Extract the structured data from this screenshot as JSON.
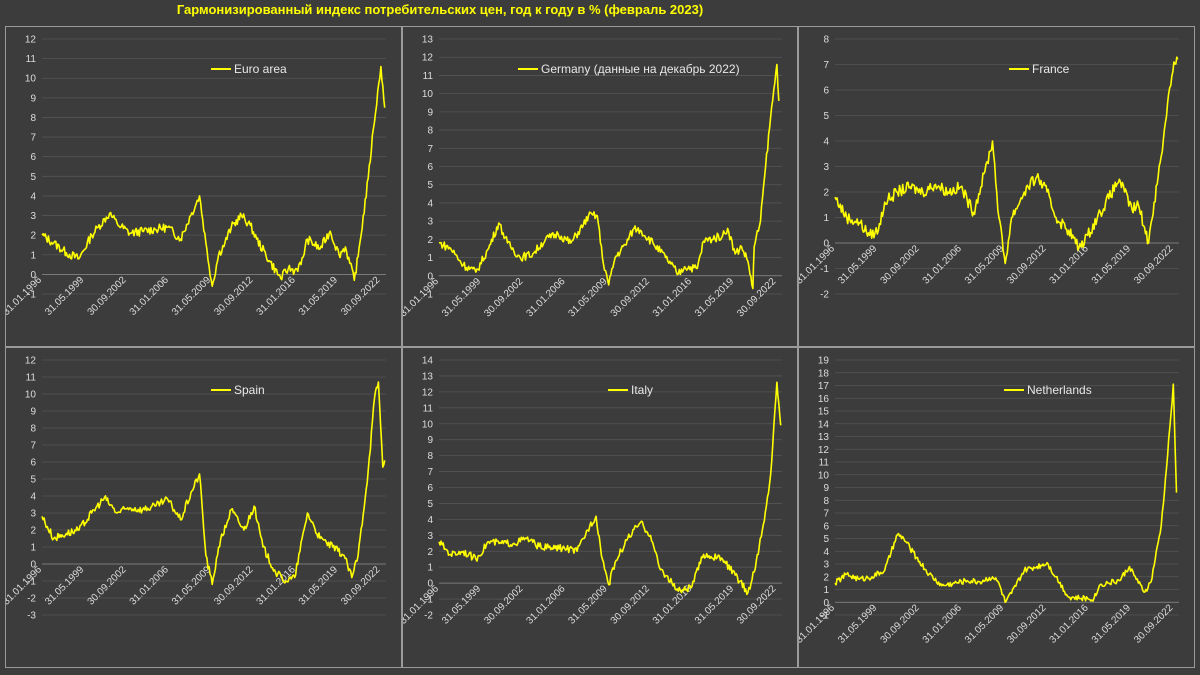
{
  "title": "Гармонизированный индекс потребительских цен, год к году в % (февраль 2023)",
  "colors": {
    "line": "#ffff00",
    "background": "#3c3c3c",
    "grid": "#5a5a5a",
    "axis_text": "#dcdcdc",
    "title": "#ffff00"
  },
  "chart_data": [
    {
      "type": "line",
      "name": "Euro area",
      "ylim": [
        -1,
        12
      ],
      "yticks": [
        "-1",
        "0",
        "1",
        "2",
        "3",
        "4",
        "5",
        "6",
        "7",
        "8",
        "9",
        "10",
        "11",
        "12"
      ],
      "xticks": [
        "31.01.1996",
        "31.05.1999",
        "30.09.2002",
        "31.01.2006",
        "31.05.2009",
        "30.09.2012",
        "31.01.2016",
        "31.05.2019",
        "30.09.2022"
      ],
      "legend": "top-center",
      "grid": true,
      "points": [
        [
          1996.08,
          2.0
        ],
        [
          1997.0,
          1.6
        ],
        [
          1998.0,
          1.1
        ],
        [
          1999.0,
          0.8
        ],
        [
          2000.0,
          2.0
        ],
        [
          2000.5,
          2.4
        ],
        [
          2001.4,
          3.1
        ],
        [
          2002.0,
          2.6
        ],
        [
          2003.0,
          2.1
        ],
        [
          2004.0,
          2.2
        ],
        [
          2005.0,
          2.3
        ],
        [
          2006.0,
          2.4
        ],
        [
          2007.0,
          1.8
        ],
        [
          2007.8,
          3.0
        ],
        [
          2008.5,
          4.0
        ],
        [
          2009.0,
          1.6
        ],
        [
          2009.5,
          -0.6
        ],
        [
          2010.0,
          1.0
        ],
        [
          2010.5,
          1.6
        ],
        [
          2011.0,
          2.4
        ],
        [
          2011.8,
          3.0
        ],
        [
          2012.5,
          2.5
        ],
        [
          2013.0,
          1.8
        ],
        [
          2014.0,
          0.7
        ],
        [
          2014.9,
          -0.2
        ],
        [
          2015.5,
          0.3
        ],
        [
          2016.0,
          0.2
        ],
        [
          2016.5,
          0.5
        ],
        [
          2017.0,
          1.8
        ],
        [
          2018.0,
          1.3
        ],
        [
          2018.8,
          2.2
        ],
        [
          2019.5,
          1.0
        ],
        [
          2020.0,
          1.4
        ],
        [
          2020.7,
          -0.3
        ],
        [
          2021.0,
          0.9
        ],
        [
          2021.8,
          4.9
        ],
        [
          2022.2,
          7.4
        ],
        [
          2022.8,
          10.6
        ],
        [
          2023.1,
          8.5
        ]
      ]
    },
    {
      "type": "line",
      "name": "Germany (данные на декабрь 2022)",
      "ylim": [
        -1,
        13
      ],
      "yticks": [
        "-1",
        "0",
        "1",
        "2",
        "3",
        "4",
        "5",
        "6",
        "7",
        "8",
        "9",
        "10",
        "11",
        "12",
        "13"
      ],
      "xticks": [
        "31.01.1996",
        "31.05.1999",
        "30.09.2002",
        "31.01.2006",
        "31.05.2009",
        "30.09.2012",
        "31.01.2016",
        "31.05.2019",
        "30.09.2022"
      ],
      "legend": "top-center",
      "grid": true,
      "points": [
        [
          1996.08,
          1.8
        ],
        [
          1997.0,
          1.5
        ],
        [
          1998.0,
          0.6
        ],
        [
          1999.0,
          0.2
        ],
        [
          2000.0,
          1.5
        ],
        [
          2000.8,
          2.9
        ],
        [
          2001.5,
          1.8
        ],
        [
          2002.5,
          1.0
        ],
        [
          2003.5,
          1.2
        ],
        [
          2004.5,
          2.0
        ],
        [
          2005.5,
          2.3
        ],
        [
          2006.5,
          1.8
        ],
        [
          2007.5,
          2.8
        ],
        [
          2007.9,
          3.3
        ],
        [
          2008.6,
          3.3
        ],
        [
          2009.0,
          1.0
        ],
        [
          2009.5,
          -0.5
        ],
        [
          2010.0,
          1.0
        ],
        [
          2010.8,
          1.7
        ],
        [
          2011.5,
          2.6
        ],
        [
          2012.0,
          2.5
        ],
        [
          2013.0,
          1.8
        ],
        [
          2014.0,
          1.0
        ],
        [
          2015.0,
          0.1
        ],
        [
          2015.5,
          0.5
        ],
        [
          2016.5,
          0.4
        ],
        [
          2017.0,
          1.9
        ],
        [
          2018.5,
          2.2
        ],
        [
          2018.9,
          2.6
        ],
        [
          2019.5,
          1.2
        ],
        [
          2020.0,
          1.6
        ],
        [
          2020.5,
          0.8
        ],
        [
          2020.9,
          -0.7
        ],
        [
          2021.0,
          1.6
        ],
        [
          2021.5,
          3.0
        ],
        [
          2021.9,
          6.0
        ],
        [
          2022.3,
          8.7
        ],
        [
          2022.8,
          11.6
        ],
        [
          2022.95,
          9.6
        ]
      ]
    },
    {
      "type": "line",
      "name": "France",
      "ylim": [
        -2,
        8
      ],
      "yticks": [
        "-2",
        "-1",
        "0",
        "1",
        "2",
        "3",
        "4",
        "5",
        "6",
        "7",
        "8"
      ],
      "xticks": [
        "31.01.1996",
        "31.05.1999",
        "30.09.2002",
        "31.01.2006",
        "31.05.2009",
        "30.09.2012",
        "31.01.2016",
        "31.05.2019",
        "30.09.2022"
      ],
      "legend": "top-right",
      "grid": true,
      "points": [
        [
          1996.08,
          1.8
        ],
        [
          1997.0,
          1.0
        ],
        [
          1998.0,
          0.8
        ],
        [
          1998.8,
          0.3
        ],
        [
          1999.5,
          0.5
        ],
        [
          2000.0,
          1.6
        ],
        [
          2001.0,
          2.0
        ],
        [
          2002.0,
          2.2
        ],
        [
          2003.0,
          2.0
        ],
        [
          2004.0,
          2.3
        ],
        [
          2005.0,
          2.0
        ],
        [
          2006.0,
          2.2
        ],
        [
          2007.0,
          1.2
        ],
        [
          2007.9,
          2.8
        ],
        [
          2008.5,
          4.0
        ],
        [
          2009.0,
          1.0
        ],
        [
          2009.5,
          -0.8
        ],
        [
          2010.0,
          1.0
        ],
        [
          2011.0,
          2.0
        ],
        [
          2012.0,
          2.6
        ],
        [
          2012.8,
          2.0
        ],
        [
          2013.5,
          1.0
        ],
        [
          2014.5,
          0.5
        ],
        [
          2015.3,
          -0.2
        ],
        [
          2016.0,
          0.3
        ],
        [
          2017.0,
          1.2
        ],
        [
          2018.5,
          2.5
        ],
        [
          2018.9,
          2.0
        ],
        [
          2019.5,
          1.3
        ],
        [
          2020.0,
          1.5
        ],
        [
          2020.8,
          0.0
        ],
        [
          2021.0,
          0.8
        ],
        [
          2021.8,
          3.4
        ],
        [
          2022.3,
          5.5
        ],
        [
          2022.8,
          7.1
        ],
        [
          2023.1,
          7.2
        ]
      ]
    },
    {
      "type": "line",
      "name": "Spain",
      "ylim": [
        -3,
        12
      ],
      "yticks": [
        "-3",
        "-2",
        "-1",
        "0",
        "1",
        "2",
        "3",
        "4",
        "5",
        "6",
        "7",
        "8",
        "9",
        "10",
        "11",
        "12"
      ],
      "xticks": [
        "31.01.1996",
        "31.05.1999",
        "30.09.2002",
        "31.01.2006",
        "31.05.2009",
        "30.09.2012",
        "31.01.2016",
        "31.05.2019",
        "30.09.2022"
      ],
      "legend": "top-center",
      "grid": true,
      "points": [
        [
          1996.08,
          2.8
        ],
        [
          1997.0,
          1.5
        ],
        [
          1998.0,
          1.8
        ],
        [
          1999.0,
          2.0
        ],
        [
          2000.0,
          3.0
        ],
        [
          2001.0,
          3.9
        ],
        [
          2002.0,
          3.0
        ],
        [
          2003.0,
          3.3
        ],
        [
          2004.0,
          3.2
        ],
        [
          2005.0,
          3.4
        ],
        [
          2006.0,
          3.8
        ],
        [
          2007.0,
          2.6
        ],
        [
          2007.9,
          4.3
        ],
        [
          2008.5,
          5.3
        ],
        [
          2009.0,
          0.5
        ],
        [
          2009.5,
          -1.2
        ],
        [
          2010.0,
          1.0
        ],
        [
          2011.0,
          3.2
        ],
        [
          2012.0,
          2.0
        ],
        [
          2012.8,
          3.4
        ],
        [
          2013.5,
          1.0
        ],
        [
          2014.5,
          -0.5
        ],
        [
          2015.3,
          -1.0
        ],
        [
          2016.0,
          -0.8
        ],
        [
          2017.0,
          3.0
        ],
        [
          2018.0,
          1.5
        ],
        [
          2019.0,
          1.0
        ],
        [
          2019.9,
          0.5
        ],
        [
          2020.5,
          -0.8
        ],
        [
          2021.0,
          0.5
        ],
        [
          2021.8,
          5.5
        ],
        [
          2022.3,
          9.8
        ],
        [
          2022.6,
          10.7
        ],
        [
          2022.95,
          5.7
        ],
        [
          2023.1,
          6.1
        ]
      ]
    },
    {
      "type": "line",
      "name": "Italy",
      "ylim": [
        -2,
        14
      ],
      "yticks": [
        "-2",
        "-1",
        "0",
        "1",
        "2",
        "3",
        "4",
        "5",
        "6",
        "7",
        "8",
        "9",
        "10",
        "11",
        "12",
        "13",
        "14"
      ],
      "xticks": [
        "31.01.1996",
        "31.05.1999",
        "30.09.2002",
        "31.01.2006",
        "31.05.2009",
        "30.09.2012",
        "31.01.2016",
        "31.05.2019",
        "30.09.2022"
      ],
      "legend": "top-center",
      "grid": true,
      "points": [
        [
          1996.08,
          2.6
        ],
        [
          1997.0,
          1.8
        ],
        [
          1998.0,
          2.0
        ],
        [
          1999.0,
          1.5
        ],
        [
          2000.0,
          2.6
        ],
        [
          2001.0,
          2.5
        ],
        [
          2002.0,
          2.5
        ],
        [
          2003.0,
          2.8
        ],
        [
          2004.0,
          2.3
        ],
        [
          2005.0,
          2.2
        ],
        [
          2006.0,
          2.2
        ],
        [
          2007.0,
          2.0
        ],
        [
          2008.0,
          3.6
        ],
        [
          2008.5,
          4.2
        ],
        [
          2009.0,
          1.5
        ],
        [
          2009.5,
          -0.1
        ],
        [
          2010.0,
          1.3
        ],
        [
          2011.0,
          2.8
        ],
        [
          2012.0,
          3.8
        ],
        [
          2012.8,
          3.0
        ],
        [
          2013.5,
          1.0
        ],
        [
          2014.5,
          0.0
        ],
        [
          2015.0,
          -0.5
        ],
        [
          2016.0,
          -0.3
        ],
        [
          2017.0,
          1.8
        ],
        [
          2018.5,
          1.5
        ],
        [
          2019.5,
          0.5
        ],
        [
          2020.5,
          -0.6
        ],
        [
          2021.0,
          0.7
        ],
        [
          2021.8,
          3.9
        ],
        [
          2022.3,
          6.8
        ],
        [
          2022.8,
          12.6
        ],
        [
          2023.1,
          9.9
        ]
      ]
    },
    {
      "type": "line",
      "name": "Netherlands",
      "ylim": [
        -1,
        19
      ],
      "yticks": [
        "-1",
        "0",
        "1",
        "2",
        "3",
        "4",
        "5",
        "6",
        "7",
        "8",
        "9",
        "10",
        "11",
        "12",
        "13",
        "14",
        "15",
        "16",
        "17",
        "18",
        "19"
      ],
      "xticks": [
        "31.01.1996",
        "31.05.1999",
        "30.09.2002",
        "31.01.2006",
        "31.05.2009",
        "30.09.2012",
        "31.01.2016",
        "31.05.2019",
        "30.09.2022"
      ],
      "legend": "top-center",
      "grid": true,
      "points": [
        [
          1996.08,
          1.5
        ],
        [
          1997.0,
          2.2
        ],
        [
          1998.0,
          1.8
        ],
        [
          1999.0,
          2.0
        ],
        [
          2000.0,
          2.5
        ],
        [
          2001.0,
          5.3
        ],
        [
          2001.5,
          5.0
        ],
        [
          2002.5,
          3.5
        ],
        [
          2003.5,
          2.2
        ],
        [
          2004.5,
          1.3
        ],
        [
          2005.5,
          1.5
        ],
        [
          2006.5,
          1.7
        ],
        [
          2007.5,
          1.6
        ],
        [
          2008.5,
          2.0
        ],
        [
          2009.0,
          1.5
        ],
        [
          2009.5,
          0.0
        ],
        [
          2010.0,
          0.7
        ],
        [
          2011.0,
          2.5
        ],
        [
          2012.0,
          2.8
        ],
        [
          2012.8,
          3.1
        ],
        [
          2013.5,
          2.0
        ],
        [
          2014.5,
          0.4
        ],
        [
          2015.5,
          0.3
        ],
        [
          2016.5,
          0.3
        ],
        [
          2017.0,
          1.4
        ],
        [
          2018.5,
          1.7
        ],
        [
          2019.3,
          2.8
        ],
        [
          2020.0,
          1.5
        ],
        [
          2020.5,
          0.8
        ],
        [
          2021.0,
          1.6
        ],
        [
          2021.8,
          6.0
        ],
        [
          2022.3,
          11.5
        ],
        [
          2022.75,
          17.1
        ],
        [
          2023.0,
          8.6
        ]
      ]
    }
  ]
}
